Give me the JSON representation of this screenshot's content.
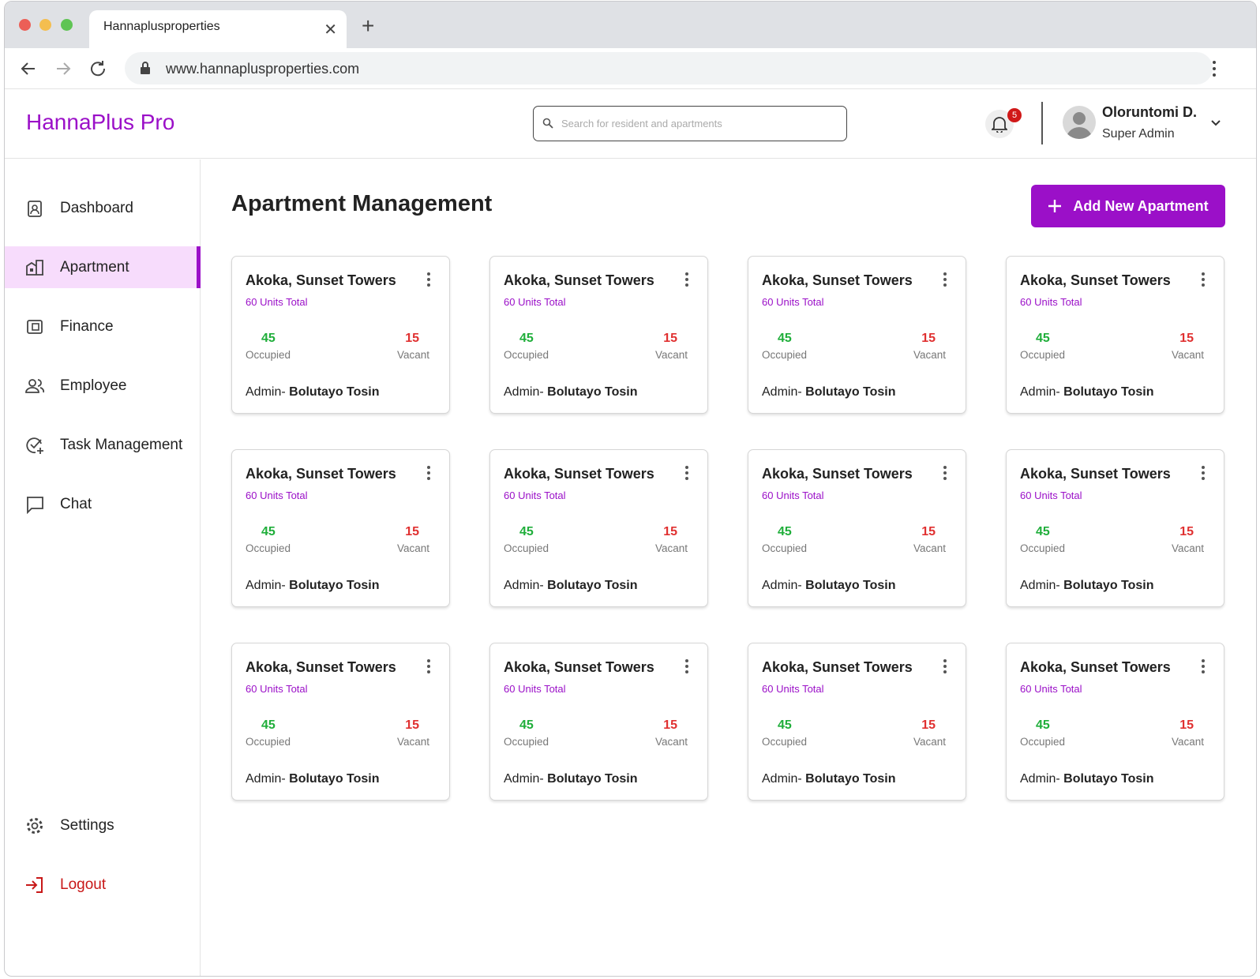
{
  "browser": {
    "tab_title": "Hannaplusproperties",
    "url": "www.hannaplusproperties.com"
  },
  "header": {
    "brand": "HannaPlus Pro",
    "search_placeholder": "Search for resident and apartments",
    "notification_count": 5,
    "user_name": "Oloruntomi D.",
    "user_role": "Super Admin"
  },
  "sidebar": {
    "nav": [
      "Dashboard",
      "Apartment",
      "Finance",
      "Employee",
      "Task Management",
      "Chat"
    ],
    "settings": "Settings",
    "logout": "Logout"
  },
  "page": {
    "title": "Apartment Management",
    "add_button": "Add New Apartment"
  },
  "cards": [
    {
      "name": "Akoka, Sunset Towers",
      "units": "60 Units Total",
      "occupied": 45,
      "occupied_label": "Occupied",
      "vacant": 15,
      "vacant_label": "Vacant",
      "admin_label": "Admin-",
      "admin_name": "Bolutayo Tosin"
    },
    {
      "name": "Akoka, Sunset Towers",
      "units": "60 Units Total",
      "occupied": 45,
      "occupied_label": "Occupied",
      "vacant": 15,
      "vacant_label": "Vacant",
      "admin_label": "Admin-",
      "admin_name": "Bolutayo Tosin"
    },
    {
      "name": "Akoka, Sunset Towers",
      "units": "60 Units Total",
      "occupied": 45,
      "occupied_label": "Occupied",
      "vacant": 15,
      "vacant_label": "Vacant",
      "admin_label": "Admin-",
      "admin_name": "Bolutayo Tosin"
    },
    {
      "name": "Akoka, Sunset Towers",
      "units": "60 Units Total",
      "occupied": 45,
      "occupied_label": "Occupied",
      "vacant": 15,
      "vacant_label": "Vacant",
      "admin_label": "Admin-",
      "admin_name": "Bolutayo Tosin"
    },
    {
      "name": "Akoka, Sunset Towers",
      "units": "60 Units Total",
      "occupied": 45,
      "occupied_label": "Occupied",
      "vacant": 15,
      "vacant_label": "Vacant",
      "admin_label": "Admin-",
      "admin_name": "Bolutayo Tosin"
    },
    {
      "name": "Akoka, Sunset Towers",
      "units": "60 Units Total",
      "occupied": 45,
      "occupied_label": "Occupied",
      "vacant": 15,
      "vacant_label": "Vacant",
      "admin_label": "Admin-",
      "admin_name": "Bolutayo Tosin"
    },
    {
      "name": "Akoka, Sunset Towers",
      "units": "60 Units Total",
      "occupied": 45,
      "occupied_label": "Occupied",
      "vacant": 15,
      "vacant_label": "Vacant",
      "admin_label": "Admin-",
      "admin_name": "Bolutayo Tosin"
    },
    {
      "name": "Akoka, Sunset Towers",
      "units": "60 Units Total",
      "occupied": 45,
      "occupied_label": "Occupied",
      "vacant": 15,
      "vacant_label": "Vacant",
      "admin_label": "Admin-",
      "admin_name": "Bolutayo Tosin"
    },
    {
      "name": "Akoka, Sunset Towers",
      "units": "60 Units Total",
      "occupied": 45,
      "occupied_label": "Occupied",
      "vacant": 15,
      "vacant_label": "Vacant",
      "admin_label": "Admin-",
      "admin_name": "Bolutayo Tosin"
    },
    {
      "name": "Akoka, Sunset Towers",
      "units": "60 Units Total",
      "occupied": 45,
      "occupied_label": "Occupied",
      "vacant": 15,
      "vacant_label": "Vacant",
      "admin_label": "Admin-",
      "admin_name": "Bolutayo Tosin"
    },
    {
      "name": "Akoka, Sunset Towers",
      "units": "60 Units Total",
      "occupied": 45,
      "occupied_label": "Occupied",
      "vacant": 15,
      "vacant_label": "Vacant",
      "admin_label": "Admin-",
      "admin_name": "Bolutayo Tosin"
    },
    {
      "name": "Akoka, Sunset Towers",
      "units": "60 Units Total",
      "occupied": 45,
      "occupied_label": "Occupied",
      "vacant": 15,
      "vacant_label": "Vacant",
      "admin_label": "Admin-",
      "admin_name": "Bolutayo Tosin"
    }
  ]
}
